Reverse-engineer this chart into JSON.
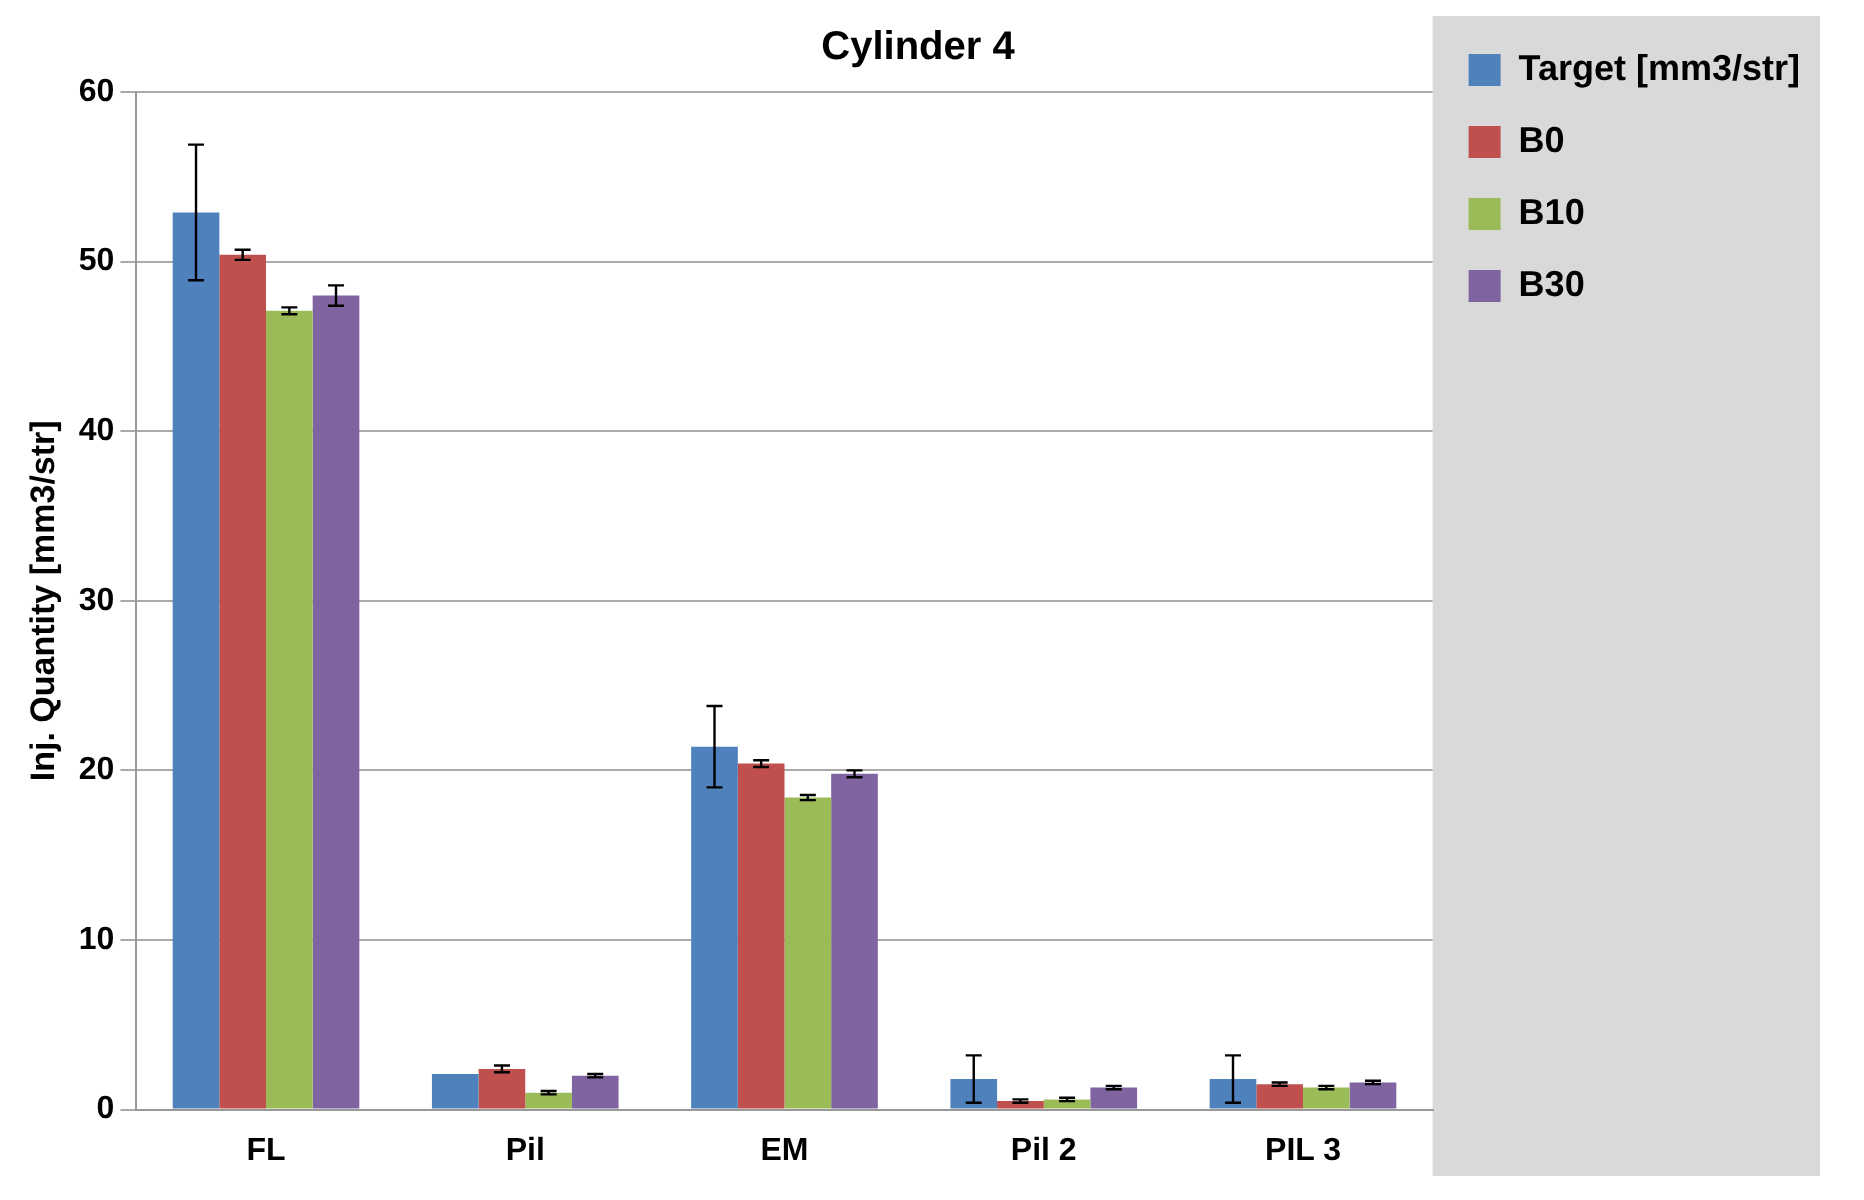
{
  "chart_data": {
    "type": "bar",
    "title": "Cylinder 4",
    "ylabel": "Inj. Quantity [mm3/str]",
    "categories": [
      "FL",
      "Pil",
      "EM",
      "Pil 2",
      "PIL 3"
    ],
    "series": [
      {
        "name": "Target [mm3/str]",
        "color": "#4f81bd",
        "values": [
          52.9,
          2.1,
          21.4,
          1.8,
          1.8
        ],
        "errors": [
          4,
          null,
          2.4,
          1.4,
          1.4
        ]
      },
      {
        "name": "B0",
        "color": "#c0504d",
        "values": [
          50.4,
          2.4,
          20.4,
          0.5,
          1.5
        ],
        "errors": [
          0.3,
          0.2,
          0.2,
          0.1,
          0.1
        ]
      },
      {
        "name": "B10",
        "color": "#9bbb59",
        "values": [
          47.1,
          1.0,
          18.4,
          0.6,
          1.3
        ],
        "errors": [
          0.2,
          0.1,
          0.15,
          0.1,
          0.1
        ]
      },
      {
        "name": "B30",
        "color": "#8064a2",
        "values": [
          48.0,
          2.0,
          19.8,
          1.3,
          1.6
        ],
        "errors": [
          0.6,
          0.1,
          0.2,
          0.1,
          0.1
        ]
      }
    ],
    "ylim": [
      0,
      60
    ],
    "yticks": [
      0,
      10,
      20,
      30,
      40,
      50,
      60
    ],
    "grid": "y",
    "legend": "top right"
  }
}
